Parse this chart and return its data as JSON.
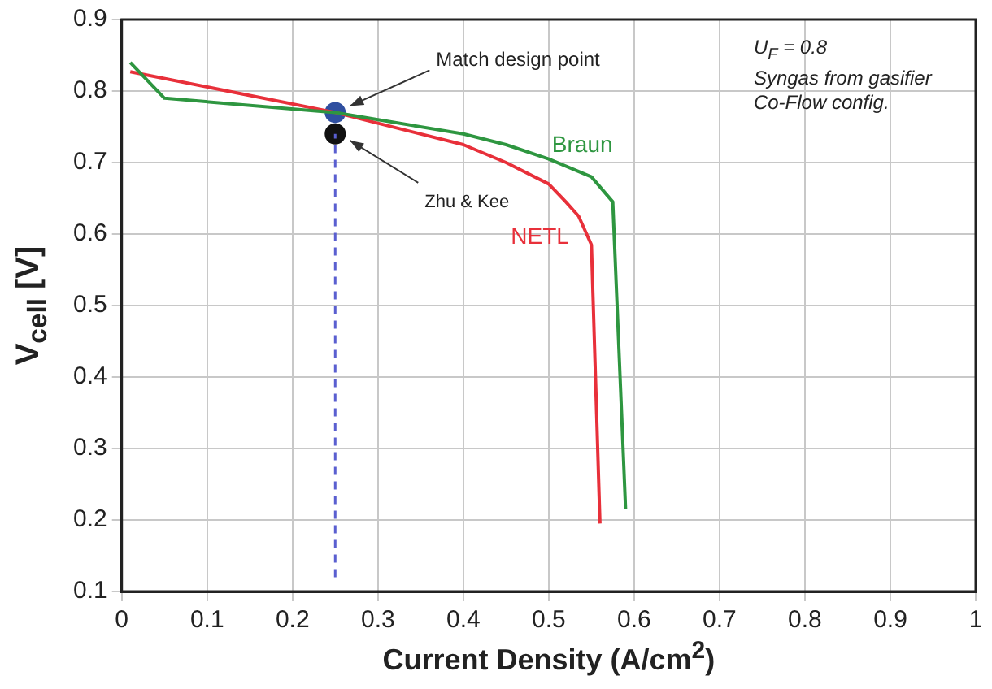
{
  "chart_data": {
    "type": "line",
    "xlabel": "Current Density (A/cm$^{2}$)",
    "ylabel": "V$_{cell}$  [V]",
    "xlim": [
      0,
      1
    ],
    "xticks": [
      0,
      0.1,
      0.2,
      0.3,
      0.4,
      0.5,
      0.6,
      0.7,
      0.8,
      0.9,
      1
    ],
    "ylim": [
      0.1,
      0.9
    ],
    "yticks": [
      0.1,
      0.2,
      0.3,
      0.4,
      0.5,
      0.6,
      0.7,
      0.8,
      0.9
    ],
    "grid": true,
    "legend": false,
    "marker": "none",
    "annotations": [
      "U$_{F}$ = 0.8",
      "Syngas from gasifier",
      "Co-Flow config."
    ],
    "series": [
      {
        "name": "Braun",
        "color": "#2e9640",
        "x": [
          0.01,
          0.05,
          0.25,
          0.3,
          0.4,
          0.45,
          0.5,
          0.55,
          0.575,
          0.59
        ],
        "values": [
          0.84,
          0.79,
          0.77,
          0.76,
          0.74,
          0.725,
          0.705,
          0.68,
          0.645,
          0.215
        ]
      },
      {
        "name": "NETL",
        "color": "#e8303a",
        "x": [
          0.01,
          0.25,
          0.3,
          0.4,
          0.45,
          0.5,
          0.52,
          0.535,
          0.55,
          0.56
        ],
        "values": [
          0.827,
          0.77,
          0.755,
          0.725,
          0.7,
          0.67,
          0.645,
          0.625,
          0.585,
          0.195
        ]
      },
      {
        "line_style": "dashed",
        "color": "#5a5fd0",
        "x": [
          0.25,
          0.25
        ],
        "values": [
          0.12,
          0.74
        ]
      },
      {
        "name": "Match design point",
        "type": "scatter",
        "marker": "circle",
        "color": "#2f4fa0",
        "x": [
          0.25
        ],
        "values": [
          0.77
        ]
      },
      {
        "name": "Zhu & Kee",
        "type": "scatter",
        "marker": "circle",
        "color": "#111111",
        "x": [
          0.25
        ],
        "values": [
          0.74
        ]
      }
    ]
  }
}
